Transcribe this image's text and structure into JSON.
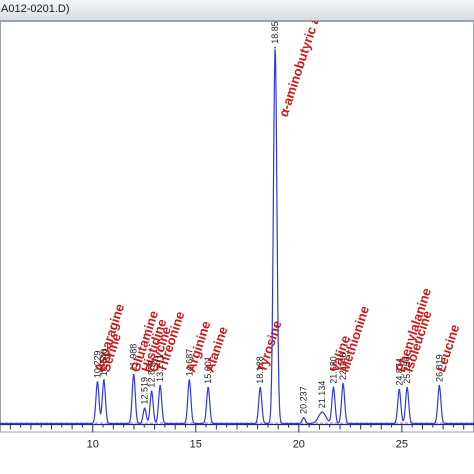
{
  "window": {
    "title": "A012-0201.D)"
  },
  "chart_data": {
    "type": "line",
    "title": "",
    "xlabel": "",
    "ylabel": "",
    "xlim": [
      5.5,
      28.5
    ],
    "ylim": [
      -2,
      105
    ],
    "x_ticks": [
      10,
      15,
      20,
      25
    ],
    "grid": false,
    "colors": {
      "trace": "#2f3ad8",
      "annotation": "#cc1a1a",
      "baseline": "#c040c0",
      "axis": "#1a2a8a"
    },
    "peaks": [
      {
        "rt": 10.229,
        "rt_label": "10.229",
        "height": 11.0,
        "name": "Asparagine"
      },
      {
        "rt": 10.54,
        "rt_label": "10.540",
        "height": 11.5,
        "name": "Serine"
      },
      {
        "rt": 11.988,
        "rt_label": "11.988",
        "height": 13.0,
        "name": "Glutamine"
      },
      {
        "rt": 12.519,
        "rt_label": "12.519",
        "height": 4.0,
        "name": "Histidine"
      },
      {
        "rt": 12.858,
        "rt_label": "12.858",
        "height": 8.5,
        "name": "Glycine"
      },
      {
        "rt": 13.271,
        "rt_label": "13.271",
        "height": 10.0,
        "name": "Threonine"
      },
      {
        "rt": 14.687,
        "rt_label": "14.687",
        "height": 11.5,
        "name": "Arginine"
      },
      {
        "rt": 15.601,
        "rt_label": "15.601",
        "height": 9.5,
        "name": "Alanine"
      },
      {
        "rt": 18.128,
        "rt_label": "18.128",
        "height": 9.5,
        "name": "Tyrosine"
      },
      {
        "rt": 18.851,
        "rt_label": "18.851",
        "height": 100.0,
        "name": "α-aminobutyric acid"
      },
      {
        "rt": 20.237,
        "rt_label": "20.237",
        "height": 1.5,
        "name": ""
      },
      {
        "rt": 21.134,
        "rt_label": "21.134",
        "height": 3.0,
        "name": ""
      },
      {
        "rt": 21.68,
        "rt_label": "21.680",
        "height": 9.5,
        "name": "Valine"
      },
      {
        "rt": 22.148,
        "rt_label": "22.148",
        "height": 10.5,
        "name": "Methionine"
      },
      {
        "rt": 24.874,
        "rt_label": "24.874",
        "height": 9.0,
        "name": "Phenylalanine"
      },
      {
        "rt": 25.256,
        "rt_label": "25.256",
        "height": 9.5,
        "name": "Isoleucine"
      },
      {
        "rt": 26.819,
        "rt_label": "26.819",
        "height": 10.0,
        "name": "Leucine"
      }
    ]
  }
}
